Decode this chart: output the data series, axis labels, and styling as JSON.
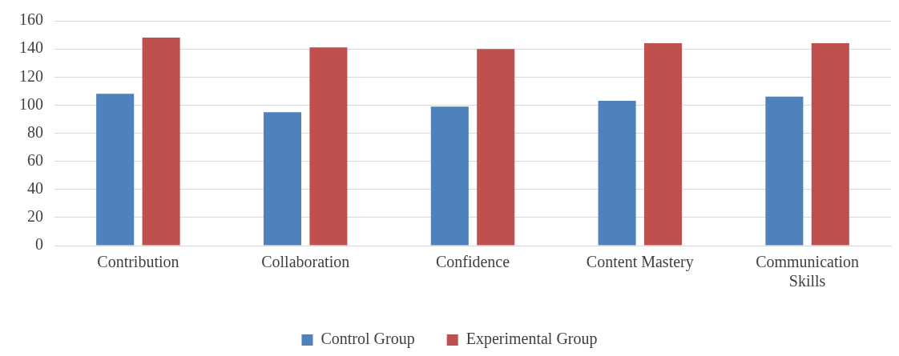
{
  "chart_data": {
    "type": "bar",
    "categories": [
      "Contribution",
      "Collaboration",
      "Confidence",
      "Content Mastery",
      "Communication Skills"
    ],
    "series": [
      {
        "name": "Control Group",
        "color": "#4f81bd",
        "values": [
          108,
          95,
          99,
          103,
          106
        ]
      },
      {
        "name": "Experimental Group",
        "color": "#c0504d",
        "values": [
          148,
          141,
          140,
          144,
          144
        ]
      }
    ],
    "ylim": [
      0,
      160
    ],
    "yticks": [
      0,
      20,
      40,
      60,
      80,
      100,
      120,
      140,
      160
    ],
    "grid": "y",
    "legend": "bottom"
  }
}
